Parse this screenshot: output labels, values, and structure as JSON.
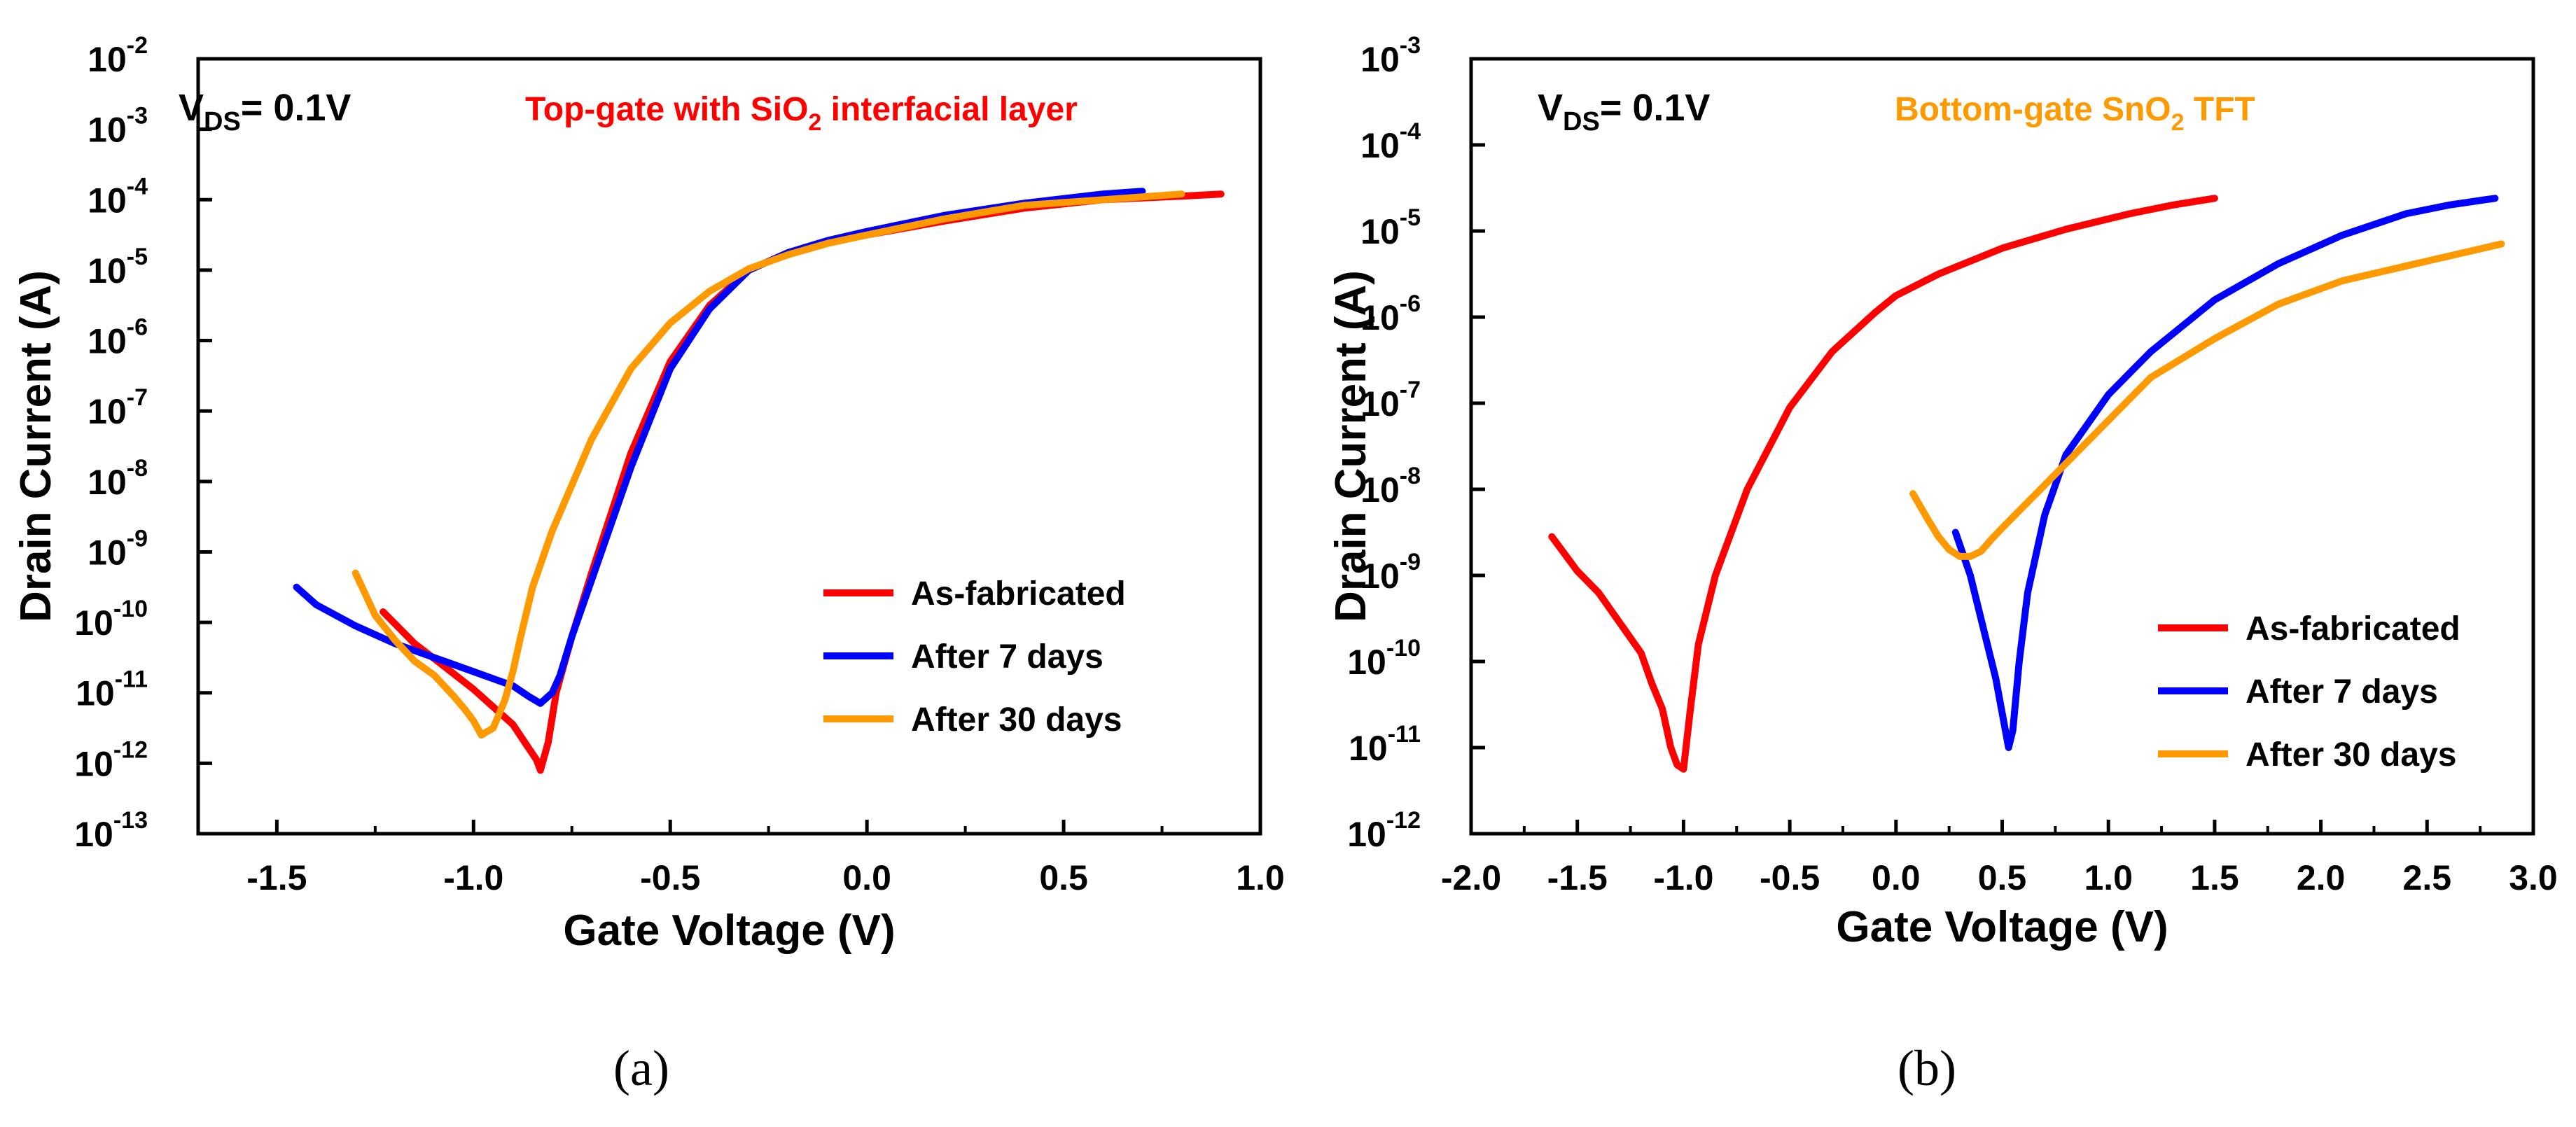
{
  "chart_data": [
    {
      "type": "line",
      "panel_label": "(a)",
      "xlabel": "Gate Voltage (V)",
      "ylabel": "Drain Current (A)",
      "yscale": "log",
      "xlim": [
        -1.7,
        1.0
      ],
      "ylim_exp": [
        -13,
        -2
      ],
      "x_ticks": [
        "-1.5",
        "-1.0",
        "-0.5",
        "0.0",
        "0.5",
        "1.0"
      ],
      "x_tick_values": [
        -1.5,
        -1.0,
        -0.5,
        0.0,
        0.5,
        1.0
      ],
      "y_tick_exponents": [
        "-2",
        "-3",
        "-4",
        "-5",
        "-6",
        "-7",
        "-8",
        "-9",
        "-10",
        "-11",
        "-12",
        "-13"
      ],
      "vds": {
        "label": "V",
        "sub": "DS",
        "value": "= 0.1V"
      },
      "annotation": {
        "pre": "Top-gate with SiO",
        "sub": "2",
        "post": " interfacial layer",
        "color": "#ff0000"
      },
      "legend_position": "lower-right",
      "series": [
        {
          "name": "As-fabricated",
          "color": "#ff0000",
          "x": [
            -1.23,
            -1.15,
            -1.08,
            -1.0,
            -0.95,
            -0.9,
            -0.87,
            -0.84,
            -0.83,
            -0.81,
            -0.79,
            -0.75,
            -0.7,
            -0.6,
            -0.5,
            -0.4,
            -0.3,
            -0.2,
            -0.1,
            0.0,
            0.2,
            0.4,
            0.6,
            0.8,
            0.9
          ],
          "y": [
            -9.85,
            -10.3,
            -10.6,
            -10.95,
            -11.2,
            -11.45,
            -11.7,
            -11.95,
            -12.1,
            -11.7,
            -11.0,
            -10.2,
            -9.3,
            -7.6,
            -6.3,
            -5.5,
            -5.0,
            -4.75,
            -4.6,
            -4.5,
            -4.3,
            -4.12,
            -4.0,
            -3.95,
            -3.92
          ]
        },
        {
          "name": "After 7 days",
          "color": "#0000ff",
          "x": [
            -1.45,
            -1.4,
            -1.3,
            -1.2,
            -1.1,
            -1.0,
            -0.9,
            -0.86,
            -0.83,
            -0.8,
            -0.78,
            -0.75,
            -0.7,
            -0.6,
            -0.5,
            -0.4,
            -0.3,
            -0.2,
            -0.1,
            0.0,
            0.2,
            0.4,
            0.6,
            0.7
          ],
          "y": [
            -9.5,
            -9.75,
            -10.05,
            -10.3,
            -10.5,
            -10.7,
            -10.9,
            -11.05,
            -11.15,
            -11.0,
            -10.75,
            -10.2,
            -9.4,
            -7.8,
            -6.4,
            -5.55,
            -5.0,
            -4.75,
            -4.58,
            -4.45,
            -4.22,
            -4.05,
            -3.92,
            -3.88
          ]
        },
        {
          "name": "After 30 days",
          "color": "#ff9900",
          "x": [
            -1.3,
            -1.25,
            -1.2,
            -1.15,
            -1.1,
            -1.05,
            -1.02,
            -1.0,
            -0.98,
            -0.95,
            -0.92,
            -0.9,
            -0.88,
            -0.85,
            -0.8,
            -0.7,
            -0.6,
            -0.5,
            -0.4,
            -0.3,
            -0.2,
            -0.1,
            0.0,
            0.2,
            0.4,
            0.6,
            0.8
          ],
          "y": [
            -9.3,
            -9.9,
            -10.25,
            -10.55,
            -10.75,
            -11.05,
            -11.25,
            -11.4,
            -11.6,
            -11.5,
            -11.1,
            -10.7,
            -10.2,
            -9.5,
            -8.7,
            -7.4,
            -6.4,
            -5.75,
            -5.3,
            -4.98,
            -4.78,
            -4.62,
            -4.5,
            -4.27,
            -4.08,
            -4.0,
            -3.92
          ]
        }
      ]
    },
    {
      "type": "line",
      "panel_label": "(b)",
      "xlabel": "Gate Voltage (V)",
      "ylabel": "Drain Current (A)",
      "yscale": "log",
      "xlim": [
        -2.0,
        3.0
      ],
      "ylim_exp": [
        -12,
        -3
      ],
      "x_ticks": [
        "-2.0",
        "-1.5",
        "-1.0",
        "-0.5",
        "0.0",
        "0.5",
        "1.0",
        "1.5",
        "2.0",
        "2.5",
        "3.0"
      ],
      "x_tick_values": [
        -2.0,
        -1.5,
        -1.0,
        -0.5,
        0.0,
        0.5,
        1.0,
        1.5,
        2.0,
        2.5,
        3.0
      ],
      "y_tick_exponents": [
        "-3",
        "-4",
        "-5",
        "-6",
        "-7",
        "-8",
        "-9",
        "-10",
        "-11",
        "-12"
      ],
      "vds": {
        "label": "V",
        "sub": "DS",
        "value": "= 0.1V"
      },
      "annotation": {
        "pre": "Bottom-gate SnO",
        "sub": "2",
        "post": " TFT",
        "color": "#ff9900"
      },
      "legend_position": "lower-right",
      "series": [
        {
          "name": "As-fabricated",
          "color": "#ff0000",
          "x": [
            -1.62,
            -1.5,
            -1.4,
            -1.3,
            -1.2,
            -1.15,
            -1.1,
            -1.06,
            -1.03,
            -1.0,
            -0.97,
            -0.93,
            -0.85,
            -0.7,
            -0.5,
            -0.3,
            -0.1,
            0.0,
            0.2,
            0.5,
            0.8,
            1.1,
            1.3,
            1.5
          ],
          "y": [
            -8.55,
            -8.95,
            -9.2,
            -9.55,
            -9.9,
            -10.25,
            -10.55,
            -11.0,
            -11.2,
            -11.25,
            -10.6,
            -9.8,
            -9.0,
            -8.0,
            -7.05,
            -6.4,
            -5.95,
            -5.75,
            -5.5,
            -5.2,
            -4.98,
            -4.8,
            -4.7,
            -4.62
          ]
        },
        {
          "name": "After 7 days",
          "color": "#0000ff",
          "x": [
            0.28,
            0.35,
            0.42,
            0.47,
            0.5,
            0.53,
            0.55,
            0.58,
            0.62,
            0.7,
            0.8,
            1.0,
            1.2,
            1.5,
            1.8,
            2.1,
            2.4,
            2.6,
            2.82
          ],
          "y": [
            -8.5,
            -9.0,
            -9.7,
            -10.2,
            -10.6,
            -11.0,
            -10.8,
            -10.0,
            -9.2,
            -8.3,
            -7.6,
            -6.9,
            -6.4,
            -5.8,
            -5.38,
            -5.05,
            -4.8,
            -4.7,
            -4.62
          ]
        },
        {
          "name": "After 30 days",
          "color": "#ff9900",
          "x": [
            0.08,
            0.15,
            0.2,
            0.25,
            0.3,
            0.35,
            0.4,
            0.45,
            0.5,
            0.6,
            0.7,
            0.8,
            1.0,
            1.2,
            1.5,
            1.8,
            2.1,
            2.5,
            2.85
          ],
          "y": [
            -8.05,
            -8.35,
            -8.55,
            -8.7,
            -8.78,
            -8.78,
            -8.72,
            -8.58,
            -8.45,
            -8.2,
            -7.95,
            -7.7,
            -7.2,
            -6.7,
            -6.25,
            -5.85,
            -5.58,
            -5.35,
            -5.15
          ]
        }
      ]
    }
  ]
}
